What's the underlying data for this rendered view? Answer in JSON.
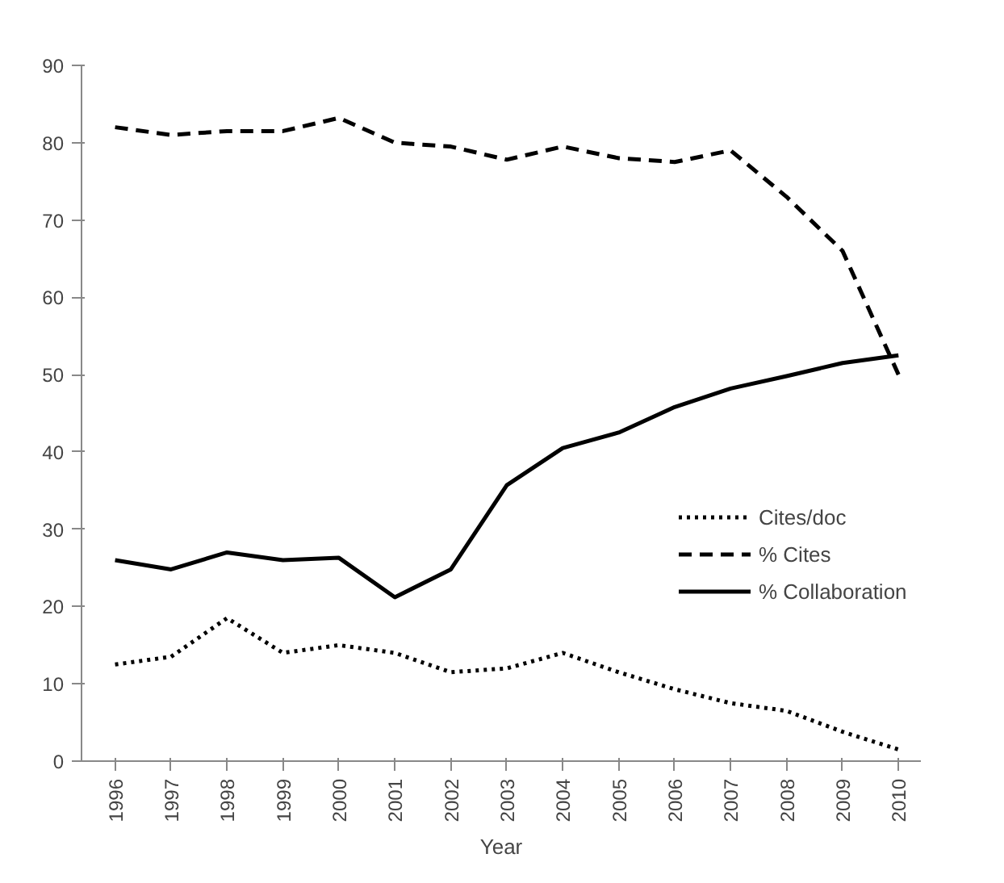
{
  "chart_data": {
    "type": "line",
    "xlabel": "Year",
    "categories": [
      "1996",
      "1997",
      "1998",
      "1999",
      "2000",
      "2001",
      "2002",
      "2003",
      "2004",
      "2005",
      "2006",
      "2007",
      "2008",
      "2009",
      "2010"
    ],
    "series": [
      {
        "name": "Cites/doc",
        "color": "#000000",
        "line_style": "dotted",
        "values": [
          12.5,
          13.5,
          18.5,
          14,
          15,
          14,
          11.5,
          12,
          14,
          11.5,
          9.3,
          7.5,
          6.5,
          3.8,
          1.5
        ]
      },
      {
        "name": "% Cites",
        "color": "#000000",
        "line_style": "dashed",
        "values": [
          82,
          81,
          81.5,
          81.5,
          83.2,
          80,
          79.5,
          77.8,
          79.5,
          78,
          77.5,
          79,
          73,
          66,
          50
        ]
      },
      {
        "name": "% Collaboration",
        "color": "#000000",
        "line_style": "solid",
        "values": [
          26,
          24.8,
          27,
          26,
          26.3,
          21.2,
          24.8,
          35.7,
          40.5,
          42.5,
          45.8,
          48.2,
          49.8,
          51.5,
          52.5
        ]
      }
    ],
    "ylim": [
      0,
      90
    ],
    "yticks": [
      0,
      10,
      20,
      30,
      40,
      50,
      60,
      70,
      80,
      90
    ],
    "grid": false,
    "legend": "right",
    "marker": "none"
  }
}
